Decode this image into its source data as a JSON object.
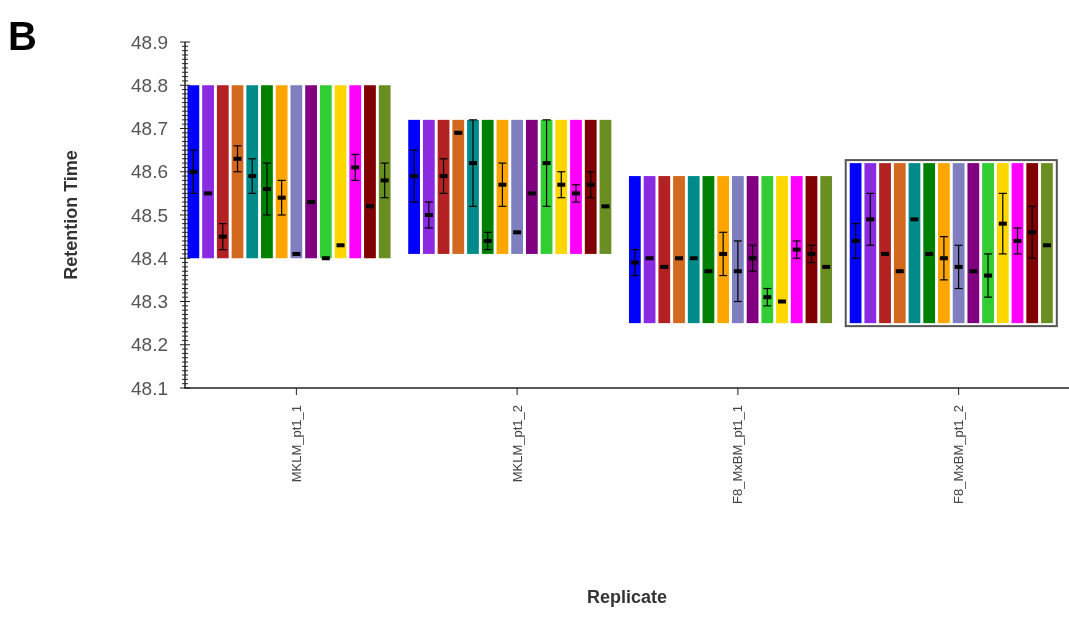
{
  "chart_data": {
    "type": "bar",
    "title": "B",
    "xlabel": "Replicate",
    "ylabel": "Retention Time",
    "categories": [
      null,
      null,
      null,
      null,
      null,
      null,
      null,
      "MKLM_pt1_1",
      null,
      null,
      null,
      null,
      null,
      null,
      null,
      null,
      null,
      null,
      null,
      null,
      null,
      null,
      "MKLM_pt1_2",
      null,
      null,
      null,
      null,
      null,
      null,
      null,
      null,
      null,
      null,
      null,
      null,
      null,
      null,
      "F8_MxBM_pt1_1",
      null,
      null,
      null,
      null,
      null,
      null,
      null,
      null,
      null,
      null,
      null,
      null,
      null,
      null,
      "F8_MxBM_pt1_2",
      null,
      null,
      null,
      null,
      null,
      null,
      null
    ],
    "ylim": [
      48.1,
      48.9
    ],
    "yticks": [
      48.1,
      {
        "value": 48.11,
        "label": null
      },
      {
        "value": 48.12,
        "label": null
      },
      {
        "value": 48.13,
        "label": null
      },
      {
        "value": 48.14,
        "label": null
      },
      {
        "value": 48.15,
        "label": null
      },
      {
        "value": 48.16,
        "label": null
      },
      {
        "value": 48.17,
        "label": null
      },
      {
        "value": 48.18,
        "label": null
      },
      {
        "value": 48.19,
        "label": null
      },
      48.2,
      {
        "value": 48.21,
        "label": null
      },
      {
        "value": 48.22,
        "label": null
      },
      {
        "value": 48.23,
        "label": null
      },
      {
        "value": 48.24,
        "label": null
      },
      {
        "value": 48.25,
        "label": null
      },
      {
        "value": 48.26,
        "label": null
      },
      {
        "value": 48.27,
        "label": null
      },
      {
        "value": 48.28,
        "label": null
      },
      {
        "value": 48.29,
        "label": null
      },
      48.3,
      {
        "value": 48.31,
        "label": null
      },
      {
        "value": 48.32,
        "label": null
      },
      {
        "value": 48.33,
        "label": null
      },
      {
        "value": 48.34,
        "label": null
      },
      {
        "value": 48.35,
        "label": null
      },
      {
        "value": 48.36,
        "label": null
      },
      {
        "value": 48.37,
        "label": null
      },
      {
        "value": 48.38,
        "label": null
      },
      {
        "value": 48.39,
        "label": null
      },
      48.4,
      {
        "value": 48.41,
        "label": null
      },
      {
        "value": 48.42,
        "label": null
      },
      {
        "value": 48.43,
        "label": null
      },
      {
        "value": 48.44,
        "label": null
      },
      {
        "value": 48.45,
        "label": null
      },
      {
        "value": 48.46,
        "label": null
      },
      {
        "value": 48.47,
        "label": null
      },
      {
        "value": 48.48,
        "label": null
      },
      {
        "value": 48.49,
        "label": null
      },
      48.5,
      {
        "value": 48.51,
        "label": null
      },
      {
        "value": 48.52,
        "label": null
      },
      {
        "value": 48.53,
        "label": null
      },
      {
        "value": 48.54,
        "label": null
      },
      {
        "value": 48.55,
        "label": null
      },
      {
        "value": 48.56,
        "label": null
      },
      {
        "value": 48.57,
        "label": null
      },
      {
        "value": 48.58,
        "label": null
      },
      {
        "value": 48.59,
        "label": null
      },
      48.6,
      {
        "value": 48.61,
        "label": null
      },
      {
        "value": 48.62,
        "label": null
      },
      {
        "value": 48.63,
        "label": null
      },
      {
        "value": 48.64,
        "label": null
      },
      {
        "value": 48.65,
        "label": null
      },
      {
        "value": 48.66,
        "label": null
      },
      {
        "value": 48.67,
        "label": null
      },
      {
        "value": 48.68,
        "label": null
      },
      {
        "value": 48.69,
        "label": null
      },
      48.7,
      {
        "value": 48.71,
        "label": null
      },
      {
        "value": 48.72,
        "label": null
      },
      {
        "value": 48.73,
        "label": null
      },
      {
        "value": 48.74,
        "label": null
      },
      {
        "value": 48.75,
        "label": null
      },
      {
        "value": 48.76,
        "label": null
      },
      {
        "value": 48.77,
        "label": null
      },
      {
        "value": 48.78,
        "label": null
      },
      {
        "value": 48.79,
        "label": null
      },
      48.8,
      {
        "value": 48.81,
        "label": null
      },
      {
        "value": 48.82,
        "label": null
      },
      {
        "value": 48.83,
        "label": null
      },
      {
        "value": 48.84,
        "label": null
      },
      {
        "value": 48.85,
        "label": null
      },
      {
        "value": 48.86,
        "label": null
      },
      {
        "value": 48.87,
        "label": null
      },
      {
        "value": 48.88,
        "label": null
      },
      {
        "value": 48.89,
        "label": null
      },
      48.9
    ],
    "marker": "square",
    "series": [
      {
        "base": [
          48.4,
          48.4,
          48.4,
          48.4,
          48.4,
          48.4,
          48.4,
          48.4,
          48.4,
          48.4,
          48.4,
          48.4,
          48.4,
          48.4,
          null,
          48.41,
          48.41,
          48.41,
          48.41,
          48.41,
          48.41,
          48.41,
          48.41,
          48.41,
          48.41,
          48.41,
          48.41,
          48.41,
          48.41,
          null,
          48.25,
          48.25,
          48.25,
          48.25,
          48.25,
          48.25,
          48.25,
          48.25,
          48.25,
          48.25,
          48.25,
          48.25,
          48.25,
          48.25,
          null,
          48.25,
          48.25,
          48.25,
          48.25,
          48.25,
          48.25,
          48.25,
          48.25,
          48.25,
          48.25,
          48.25,
          48.25,
          48.25,
          48.25,
          null
        ],
        "values": [
          0.4,
          0.4,
          0.4,
          0.4,
          0.4,
          0.4,
          0.4,
          0.4,
          0.4,
          0.4,
          0.4,
          0.4,
          0.4,
          0.4,
          null,
          0.31,
          0.31,
          0.31,
          0.31,
          0.31,
          0.31,
          0.31,
          0.31,
          0.31,
          0.31,
          0.31,
          0.31,
          0.31,
          0.31,
          null,
          0.34,
          0.34,
          0.34,
          0.34,
          0.34,
          0.34,
          0.34,
          0.34,
          0.34,
          0.34,
          0.34,
          0.34,
          0.34,
          0.34,
          null,
          0.37,
          0.37,
          0.37,
          0.37,
          0.37,
          0.37,
          0.37,
          0.37,
          0.37,
          0.37,
          0.37,
          0.37,
          0.37,
          0.37,
          null
        ],
        "colors": [
          "#0000ff",
          "#8a2be2",
          "#b22222",
          "#d2691e",
          "#008b8b",
          "#008000",
          "#ffa500",
          "#7f7fbf",
          "#800080",
          "#32cd32",
          "#ffd700",
          "#ff00ff",
          "#800000",
          "#6b8e23",
          null,
          "#0000ff",
          "#8a2be2",
          "#b22222",
          "#d2691e",
          "#008b8b",
          "#008000",
          "#ffa500",
          "#7f7fbf",
          "#800080",
          "#32cd32",
          "#ffd700",
          "#ff00ff",
          "#800000",
          "#6b8e23",
          null,
          "#0000ff",
          "#8a2be2",
          "#b22222",
          "#d2691e",
          "#008b8b",
          "#008000",
          "#ffa500",
          "#7f7fbf",
          "#800080",
          "#32cd32",
          "#ffd700",
          "#ff00ff",
          "#800000",
          "#6b8e23",
          null,
          "#0000ff",
          "#8a2be2",
          "#b22222",
          "#d2691e",
          "#008b8b",
          "#008000",
          "#ffa500",
          "#7f7fbf",
          "#800080",
          "#32cd32",
          "#ffd700",
          "#ff00ff",
          "#800000",
          "#6b8e23",
          null
        ]
      },
      {
        "type": "scatter",
        "color": "#000000",
        "values": [
          48.6,
          48.55,
          48.45,
          48.63,
          48.59,
          48.56,
          48.54,
          48.41,
          48.53,
          48.4,
          48.43,
          48.61,
          48.52,
          48.58,
          null,
          48.59,
          48.5,
          48.59,
          48.69,
          48.62,
          48.44,
          48.57,
          48.46,
          48.55,
          48.62,
          48.57,
          48.55,
          48.57,
          48.52,
          null,
          48.39,
          48.4,
          48.38,
          48.4,
          48.4,
          48.37,
          48.41,
          48.37,
          48.4,
          48.31,
          48.3,
          48.42,
          48.41,
          48.38,
          null,
          48.44,
          48.49,
          48.41,
          48.37,
          48.49,
          48.41,
          48.4,
          48.38,
          48.37,
          48.36,
          48.48,
          48.44,
          48.46,
          48.43,
          null
        ],
        "errors": [
          0.05,
          null,
          0.03,
          0.03,
          0.04,
          0.06,
          0.04,
          null,
          null,
          null,
          null,
          0.03,
          null,
          0.04,
          null,
          0.06,
          0.03,
          0.04,
          null,
          0.1,
          0.02,
          0.05,
          null,
          null,
          0.1,
          0.03,
          0.02,
          0.03,
          null,
          null,
          0.03,
          null,
          null,
          null,
          null,
          null,
          0.05,
          0.07,
          0.03,
          0.02,
          null,
          0.02,
          0.02,
          null,
          null,
          0.04,
          0.06,
          null,
          null,
          null,
          null,
          0.05,
          0.05,
          null,
          0.05,
          0.07,
          0.03,
          0.06,
          null,
          null
        ]
      }
    ]
  }
}
